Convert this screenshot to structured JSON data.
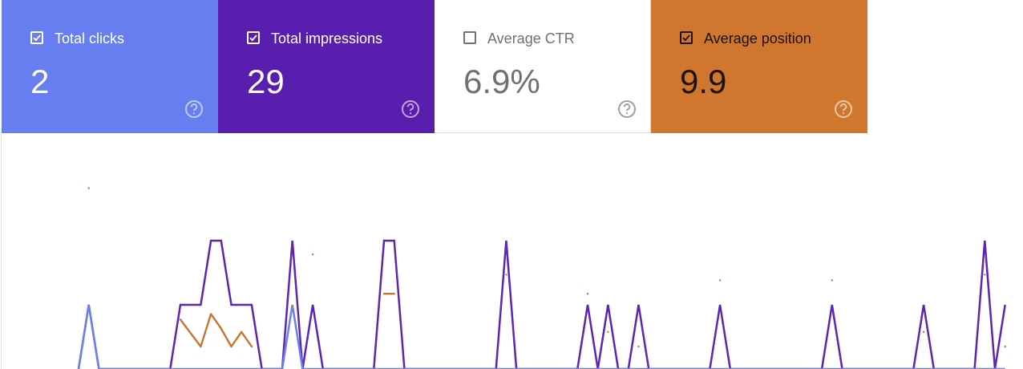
{
  "cards": [
    {
      "label": "Total clicks",
      "value": "2",
      "checked": true,
      "color": "#667ef0",
      "text_color": "#ffffff"
    },
    {
      "label": "Total impressions",
      "value": "29",
      "checked": true,
      "color": "#5a1eae",
      "text_color": "#ffffff"
    },
    {
      "label": "Average CTR",
      "value": "6.9%",
      "checked": false,
      "color": "#ffffff",
      "text_color": "#707070"
    },
    {
      "label": "Average position",
      "value": "9.9",
      "checked": true,
      "color": "#cf772e",
      "text_color": "#1e1208"
    }
  ],
  "chart_data": {
    "type": "line",
    "categories": [
      null,
      null,
      null,
      null,
      null,
      null,
      null,
      null,
      null,
      null,
      null,
      null,
      null,
      null,
      null,
      null,
      null,
      null,
      null,
      null,
      null,
      null,
      null,
      null,
      null,
      null,
      null,
      null,
      null,
      null,
      null,
      null,
      null,
      null,
      null,
      null,
      null,
      null,
      null,
      null,
      null,
      null,
      null,
      null,
      null,
      null,
      null,
      null,
      null,
      null,
      null,
      null,
      null,
      null,
      null,
      null,
      null,
      null,
      null,
      null,
      null,
      null,
      null,
      null,
      null,
      null,
      null,
      null,
      null,
      null,
      null,
      null,
      null,
      null,
      null,
      null,
      null,
      null,
      null,
      null,
      null,
      null,
      null,
      null,
      null,
      null,
      null,
      null,
      null,
      null,
      null,
      null
    ],
    "ylim": [
      0,
      3.5
    ],
    "y2lim": [
      20,
      0
    ],
    "series": [
      {
        "name": "Total impressions",
        "color": "#5e24b2",
        "values": [
          0,
          1,
          0,
          0,
          0,
          0,
          0,
          0,
          0,
          0,
          1,
          1,
          1,
          2,
          2,
          1,
          1,
          1,
          0,
          0,
          0,
          2,
          0,
          1,
          0,
          0,
          0,
          0,
          0,
          0,
          2,
          2,
          0,
          0,
          0,
          0,
          0,
          0,
          0,
          0,
          0,
          0,
          2,
          0,
          0,
          0,
          0,
          0,
          0,
          0,
          1,
          0,
          1,
          0,
          0,
          1,
          0,
          0,
          0,
          0,
          0,
          0,
          0,
          1,
          0,
          0,
          0,
          0,
          0,
          0,
          0,
          0,
          0,
          0,
          1,
          0,
          0,
          0,
          0,
          0,
          0,
          0,
          0,
          1,
          0,
          0,
          0,
          0,
          0,
          2,
          0,
          1
        ]
      },
      {
        "name": "Total clicks",
        "color": "#6b80ee",
        "values": [
          0,
          1,
          0,
          0,
          0,
          0,
          0,
          0,
          0,
          0,
          0,
          0,
          0,
          0,
          0,
          0,
          0,
          0,
          0,
          0,
          0,
          1,
          0,
          0,
          0,
          0,
          0,
          0,
          0,
          0,
          0,
          0,
          0,
          0,
          0,
          0,
          0,
          0,
          0,
          0,
          0,
          0,
          0,
          0,
          0,
          0,
          0,
          0,
          0,
          0,
          0,
          0,
          0,
          0,
          0,
          0,
          0,
          0,
          0,
          0,
          0,
          0,
          0,
          0,
          0,
          0,
          0,
          0,
          0,
          0,
          0,
          0,
          0,
          0,
          0,
          0,
          0,
          0,
          0,
          0,
          0,
          0,
          0,
          0,
          0,
          0,
          0,
          0,
          0,
          0,
          0,
          0
        ]
      },
      {
        "name": "Average position",
        "color": "#c8742b",
        "axis": "y2",
        "values": [
          null,
          3.9,
          null,
          null,
          null,
          null,
          null,
          null,
          null,
          null,
          15.6,
          16.8,
          18,
          15.1,
          16.4,
          18,
          16.7,
          18,
          null,
          null,
          null,
          14.4,
          null,
          9.8,
          null,
          null,
          null,
          null,
          null,
          null,
          13.3,
          13.3,
          null,
          null,
          null,
          null,
          null,
          null,
          null,
          null,
          null,
          null,
          11.6,
          null,
          null,
          null,
          null,
          null,
          null,
          null,
          13.3,
          null,
          16.7,
          null,
          null,
          18,
          null,
          null,
          null,
          null,
          null,
          null,
          null,
          12.1,
          null,
          null,
          null,
          null,
          null,
          null,
          null,
          null,
          null,
          null,
          12.1,
          null,
          null,
          null,
          null,
          null,
          null,
          null,
          null,
          16.7,
          null,
          null,
          null,
          null,
          null,
          11.6,
          null,
          18
        ]
      }
    ]
  }
}
